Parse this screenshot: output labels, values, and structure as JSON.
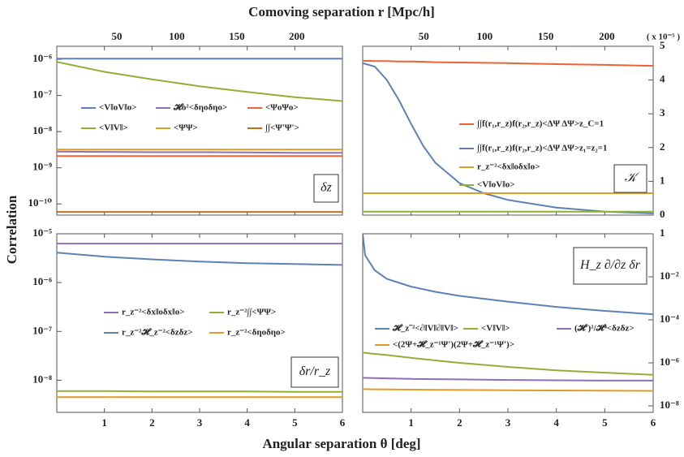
{
  "figure": {
    "top_label": "Comoving separation r [Mpc/h]",
    "x_label": "Angular separation θ [deg]",
    "y_label": "Correlation"
  },
  "chart_data": [
    {
      "type": "line",
      "log_y": true,
      "yaxis_side": "left",
      "annotation": "δz",
      "xlim": [
        0,
        6
      ],
      "xticks": [
        1,
        2,
        3,
        4,
        5,
        6
      ],
      "x2lim": [
        0,
        238
      ],
      "x2ticks": [
        50,
        100,
        150,
        200
      ],
      "ylim": [
        4.9e-11,
        2.3e-06
      ],
      "yticks": [
        {
          "value": 1e-06,
          "label": "10⁻⁶"
        },
        {
          "value": 1e-07,
          "label": "10⁻⁷"
        },
        {
          "value": 1e-08,
          "label": "10⁻⁸"
        },
        {
          "value": 1e-09,
          "label": "10⁻⁹"
        },
        {
          "value": 1e-10,
          "label": "10⁻¹⁰"
        }
      ],
      "x": [
        0,
        1,
        2,
        3,
        4,
        5,
        6
      ],
      "series": [
        {
          "name": "<V‖oV‖o>",
          "color": "#5e81b5",
          "values": [
            1.05e-06,
            1.05e-06,
            1.05e-06,
            1.05e-06,
            1.05e-06,
            1.05e-06,
            1.05e-06
          ]
        },
        {
          "name": "<V‖V‖>",
          "color": "#8fb032",
          "values": [
            8.5e-07,
            4.5e-07,
            2.8e-07,
            1.8e-07,
            1.25e-07,
            9e-08,
            7e-08
          ]
        },
        {
          "name": "𝓗o²<δηoδηo>",
          "color": "#8e6fb6",
          "values": [
            2.8e-09,
            2.75e-09,
            2.7e-09,
            2.7e-09,
            2.65e-09,
            2.6e-09,
            2.6e-09
          ]
        },
        {
          "name": "<ΨΨ>",
          "color": "#e19c24",
          "values": [
            3.2e-09,
            3.2e-09,
            3.2e-09,
            3.2e-09,
            3.2e-09,
            3.2e-09,
            3.2e-09
          ]
        },
        {
          "name": "<ΨoΨo>",
          "color": "#eb6235",
          "values": [
            2.1e-09,
            2.1e-09,
            2.1e-09,
            2.1e-09,
            2.1e-09,
            2.1e-09,
            2.1e-09
          ]
        },
        {
          "name": "∫∫<Ψ'Ψ'>",
          "color": "#c56e1a",
          "values": [
            6e-11,
            6e-11,
            6e-11,
            6e-11,
            6e-11,
            6e-11,
            6e-11
          ]
        }
      ]
    },
    {
      "type": "line",
      "log_y": false,
      "yaxis_side": "right",
      "annotation": "𝒦",
      "y_multiplier": "( x 10⁻⁵ )",
      "xlim": [
        0,
        6
      ],
      "xticks": [
        1,
        2,
        3,
        4,
        5,
        6
      ],
      "x2lim": [
        0,
        238
      ],
      "x2ticks": [
        50,
        100,
        150,
        200
      ],
      "ylim": [
        0,
        5
      ],
      "yticks": [
        0,
        1,
        2,
        3,
        4,
        5
      ],
      "x": [
        0,
        0.25,
        0.5,
        0.75,
        1,
        1.25,
        1.5,
        2,
        2.5,
        3,
        4,
        5,
        6
      ],
      "series": [
        {
          "name": "∫∫f(r₁,r_z)f(r₂,r_z)<ΔΨ ΔΨ>z_C=1",
          "color": "#eb6235",
          "values": [
            4.57,
            4.56,
            4.56,
            4.55,
            4.55,
            4.54,
            4.53,
            4.52,
            4.51,
            4.5,
            4.47,
            4.45,
            4.42
          ]
        },
        {
          "name": "∫∫f(r₁,r_z)f(r₂,r_z)<ΔΨ ΔΨ>z₁=z₂=1",
          "color": "#5e81b5",
          "values": [
            4.5,
            4.4,
            4.0,
            3.4,
            2.7,
            2.05,
            1.55,
            0.95,
            0.65,
            0.45,
            0.22,
            0.1,
            0.05
          ]
        },
        {
          "name": "r_z⁻²<δx‖oδx‖o>",
          "color": "#e19c24",
          "values": [
            0.65,
            0.65,
            0.65,
            0.65,
            0.65,
            0.65,
            0.65,
            0.65,
            0.65,
            0.65,
            0.65,
            0.65,
            0.65
          ]
        },
        {
          "name": "<V‖oV‖o>",
          "color": "#8fb032",
          "values": [
            0.1,
            0.1,
            0.1,
            0.1,
            0.1,
            0.1,
            0.1,
            0.1,
            0.1,
            0.1,
            0.1,
            0.1,
            0.1
          ]
        }
      ]
    },
    {
      "type": "line",
      "log_y": true,
      "yaxis_side": "left",
      "annotation": "δr/r_z",
      "xlim": [
        0,
        6
      ],
      "xticks": [
        1,
        2,
        3,
        4,
        5,
        6
      ],
      "ylim": [
        2.2e-09,
        1e-05
      ],
      "yticks": [
        {
          "value": 1e-05,
          "label": "10⁻⁵"
        },
        {
          "value": 1e-06,
          "label": "10⁻⁶"
        },
        {
          "value": 1e-07,
          "label": "10⁻⁷"
        },
        {
          "value": 1e-08,
          "label": "10⁻⁸"
        }
      ],
      "x": [
        0,
        1,
        2,
        3,
        4,
        5,
        6
      ],
      "series": [
        {
          "name": "r_z⁻²<δx‖oδx‖o>",
          "color": "#8e6fb6",
          "values": [
            6.3e-06,
            6.3e-06,
            6.3e-06,
            6.3e-06,
            6.3e-06,
            6.3e-06,
            6.3e-06
          ]
        },
        {
          "name": "r_z⁻²∫∫<ΨΨ>",
          "color": "#8fb032",
          "values": [
            6e-09,
            6e-09,
            5.9e-09,
            5.9e-09,
            5.9e-09,
            5.8e-09,
            5.8e-09
          ]
        },
        {
          "name": "r_z⁻²𝓗_z⁻²<δzδz>",
          "color": "#5e81b5",
          "values": [
            4.1e-06,
            3.4e-06,
            3e-06,
            2.7e-06,
            2.5e-06,
            2.4e-06,
            2.3e-06
          ]
        },
        {
          "name": "r_z⁻²<δηoδηo>",
          "color": "#e19c24",
          "values": [
            4.5e-09,
            4.5e-09,
            4.5e-09,
            4.5e-09,
            4.5e-09,
            4.5e-09,
            4.5e-09
          ]
        }
      ]
    },
    {
      "type": "line",
      "log_y": true,
      "yaxis_side": "right",
      "annotation": "H_z ∂/∂z δr",
      "xlim": [
        0,
        6
      ],
      "xticks": [
        1,
        2,
        3,
        4,
        5,
        6
      ],
      "ylim": [
        5e-09,
        1
      ],
      "yticks": [
        1,
        {
          "value": 0.01,
          "label": "10⁻²"
        },
        {
          "value": 0.0001,
          "label": "10⁻⁴"
        },
        {
          "value": 1e-06,
          "label": "10⁻⁶"
        },
        {
          "value": 1e-08,
          "label": "10⁻⁸"
        }
      ],
      "x": [
        0,
        0.05,
        0.25,
        0.5,
        1,
        1.5,
        2,
        3,
        4,
        5,
        6
      ],
      "series": [
        {
          "name": "𝓗_z⁻²<∂‖V‖∂‖V‖>",
          "color": "#5e81b5",
          "values": [
            1,
            0.1,
            0.02,
            0.008,
            0.0035,
            0.002,
            0.0013,
            0.0007,
            0.0004,
            0.00026,
            0.00018
          ]
        },
        {
          "name": "<V‖V‖>",
          "color": "#8fb032",
          "values": [
            3e-06,
            2.9e-06,
            2.6e-06,
            2.3e-06,
            1.7e-06,
            1.3e-06,
            1e-06,
            6.5e-07,
            4.5e-07,
            3.5e-07,
            2.8e-07
          ]
        },
        {
          "name": "(𝓗')²/𝓗⁴<δzδz>",
          "color": "#8e6fb6",
          "values": [
            2e-07,
            2e-07,
            1.95e-07,
            1.9e-07,
            1.8e-07,
            1.75e-07,
            1.7e-07,
            1.6e-07,
            1.55e-07,
            1.5e-07,
            1.5e-07
          ]
        },
        {
          "name": "<(2Ψ+𝓗_z⁻¹Ψ')(2Ψ+𝓗_z⁻¹Ψ')>",
          "color": "#e19c24",
          "values": [
            6e-08,
            6e-08,
            5.9e-08,
            5.8e-08,
            5.7e-08,
            5.6e-08,
            5.5e-08,
            5.3e-08,
            5.2e-08,
            5.1e-08,
            5e-08
          ]
        }
      ]
    }
  ]
}
